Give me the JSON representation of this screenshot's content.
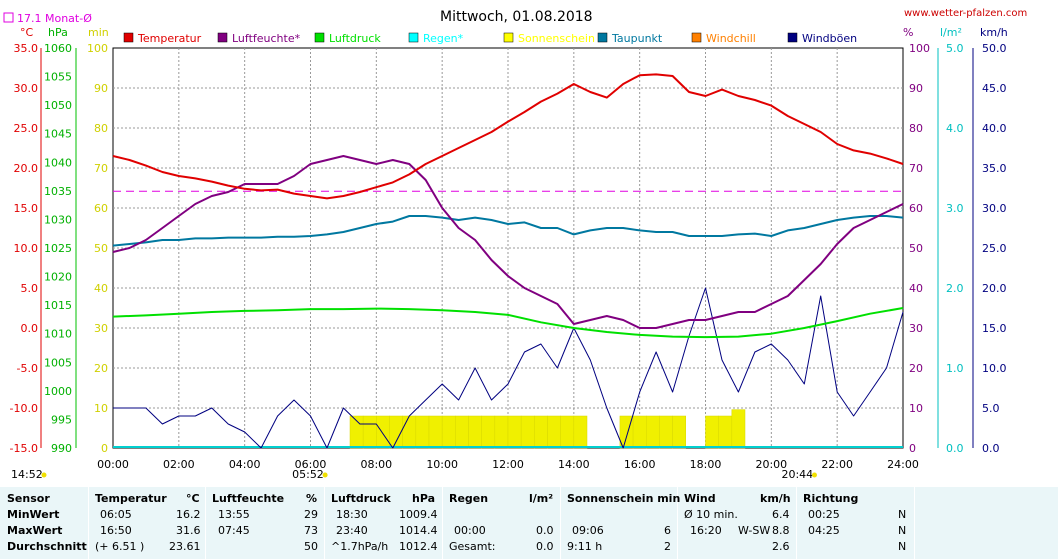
{
  "header": {
    "monthly_avg_label": "17.1 Monat-Ø",
    "title": "Mittwoch, 01.08.2018",
    "site": "www.wetter-pfalzen.com"
  },
  "colors": {
    "temperature": "#e00000",
    "humidity": "#800080",
    "pressure": "#00e000",
    "rain": "#00d0d0",
    "sunshine": "#f0f000",
    "dewpoint": "#0078a0",
    "windchill": "#ff8000",
    "gust": "#000080",
    "monthly_avg": "#e000e0"
  },
  "legend": [
    {
      "label": "Temperatur",
      "color": "#e00000"
    },
    {
      "label": "Luftfeuchte*",
      "color": "#800080"
    },
    {
      "label": "Luftdruck",
      "color": "#00e000"
    },
    {
      "label": "Regen*",
      "color": "#00ffff"
    },
    {
      "label": "Sonnenschein",
      "color": "#ffff00"
    },
    {
      "label": "Taupunkt",
      "color": "#0078a0"
    },
    {
      "label": "Windchill",
      "color": "#ff8000"
    },
    {
      "label": "Windböen",
      "color": "#000080"
    }
  ],
  "axes": {
    "units_left": [
      "°C",
      "hPa",
      "min"
    ],
    "units_right": [
      "%",
      "l/m²",
      "km/h"
    ],
    "temp_ticks": [
      "35.0",
      "30.0",
      "25.0",
      "20.0",
      "15.0",
      "10.0",
      "5.0",
      "0.0",
      "-5.0",
      "-10.0",
      "-15.0"
    ],
    "pressure_ticks": [
      "1060",
      "1055",
      "1050",
      "1045",
      "1040",
      "1035",
      "1030",
      "1025",
      "1020",
      "1015",
      "1010",
      "1005",
      "1000",
      "995",
      "990"
    ],
    "sun_ticks": [
      "100",
      "90",
      "80",
      "70",
      "60",
      "50",
      "40",
      "30",
      "20",
      "10",
      "0"
    ],
    "humidity_ticks": [
      "100",
      "90",
      "80",
      "70",
      "60",
      "50",
      "40",
      "30",
      "20",
      "10",
      "0"
    ],
    "rain_ticks": [
      "5.0",
      "4.0",
      "3.0",
      "2.0",
      "1.0",
      "0.0"
    ],
    "wind_ticks": [
      "50.0",
      "45.0",
      "40.0",
      "35.0",
      "30.0",
      "25.0",
      "20.0",
      "15.0",
      "10.0",
      "5.0",
      "0.0"
    ],
    "time_ticks": [
      "00:00",
      "02:00",
      "04:00",
      "06:00",
      "08:00",
      "10:00",
      "12:00",
      "14:00",
      "16:00",
      "18:00",
      "20:00",
      "22:00",
      "24:00"
    ],
    "sunrise": "05:52",
    "sunset": "20:44",
    "current_time": "14:52"
  },
  "chart_data": {
    "type": "line",
    "x_unit": "hour of day",
    "xlim": [
      0,
      24
    ],
    "temp_ylim": [
      -15,
      35
    ],
    "monthly_avg_temp": 17.1,
    "series": [
      {
        "name": "Temperatur",
        "axis": "temp",
        "x": [
          0,
          0.5,
          1,
          1.5,
          2,
          2.5,
          3,
          3.5,
          4,
          4.5,
          5,
          5.5,
          6,
          6.5,
          7,
          7.5,
          8,
          8.5,
          9,
          9.5,
          10,
          10.5,
          11,
          11.5,
          12,
          12.5,
          13,
          13.5,
          14,
          14.5,
          15,
          15.5,
          16,
          16.5,
          17,
          17.5,
          18,
          18.5,
          19,
          19.5,
          20,
          20.5,
          21,
          21.5,
          22,
          22.5,
          23,
          23.5,
          24
        ],
        "y": [
          21.5,
          21,
          20.3,
          19.5,
          19,
          18.7,
          18.3,
          17.8,
          17.4,
          17.2,
          17.3,
          16.8,
          16.5,
          16.2,
          16.5,
          17,
          17.6,
          18.2,
          19.2,
          20.5,
          21.5,
          22.5,
          23.5,
          24.5,
          25.8,
          27,
          28.3,
          29.3,
          30.5,
          29.5,
          28.8,
          30.5,
          31.6,
          31.7,
          31.5,
          29.5,
          29,
          29.8,
          29,
          28.5,
          27.8,
          26.5,
          25.5,
          24.5,
          23,
          22.2,
          21.8,
          21.2,
          20.5
        ]
      },
      {
        "name": "Luftfeuchte*",
        "axis": "humidity",
        "x": [
          0,
          0.5,
          1,
          1.5,
          2,
          2.5,
          3,
          3.5,
          4,
          4.5,
          5,
          5.5,
          6,
          6.5,
          7,
          7.5,
          8,
          8.5,
          9,
          9.5,
          10,
          10.5,
          11,
          11.5,
          12,
          12.5,
          13,
          13.5,
          14,
          14.5,
          15,
          15.5,
          16,
          16.5,
          17,
          17.5,
          18,
          18.5,
          19,
          19.5,
          20,
          20.5,
          21,
          21.5,
          22,
          22.5,
          23,
          23.5,
          24
        ],
        "y": [
          49,
          50,
          52,
          55,
          58,
          61,
          63,
          64,
          66,
          66,
          66,
          68,
          71,
          72,
          73,
          72,
          71,
          72,
          71,
          67,
          60,
          55,
          52,
          47,
          43,
          40,
          38,
          36,
          31,
          32,
          33,
          32,
          30,
          30,
          31,
          32,
          32,
          33,
          34,
          34,
          36,
          38,
          42,
          46,
          51,
          55,
          57,
          59,
          61
        ]
      },
      {
        "name": "Luftdruck",
        "axis": "pressure",
        "x": [
          0,
          1,
          2,
          3,
          4,
          5,
          6,
          7,
          8,
          9,
          10,
          11,
          12,
          13,
          14,
          15,
          16,
          17,
          18,
          19,
          20,
          21,
          22,
          23,
          24
        ],
        "y": [
          1013,
          1013.2,
          1013.5,
          1013.8,
          1014,
          1014.1,
          1014.3,
          1014.3,
          1014.4,
          1014.3,
          1014.1,
          1013.8,
          1013.3,
          1012,
          1011,
          1010.3,
          1009.8,
          1009.5,
          1009.4,
          1009.5,
          1010,
          1011,
          1012.2,
          1013.5,
          1014.5
        ]
      },
      {
        "name": "Taupunkt",
        "axis": "temp",
        "x": [
          0,
          0.5,
          1,
          1.5,
          2,
          2.5,
          3,
          3.5,
          4,
          4.5,
          5,
          5.5,
          6,
          6.5,
          7,
          7.5,
          8,
          8.5,
          9,
          9.5,
          10,
          10.5,
          11,
          11.5,
          12,
          12.5,
          13,
          13.5,
          14,
          14.5,
          15,
          15.5,
          16,
          16.5,
          17,
          17.5,
          18,
          18.5,
          19,
          19.5,
          20,
          20.5,
          21,
          21.5,
          22,
          22.5,
          23,
          23.5,
          24
        ],
        "y": [
          10.3,
          10.5,
          10.7,
          11,
          11,
          11.2,
          11.2,
          11.3,
          11.3,
          11.3,
          11.4,
          11.4,
          11.5,
          11.7,
          12,
          12.5,
          13,
          13.3,
          14,
          14,
          13.8,
          13.5,
          13.8,
          13.5,
          13,
          13.2,
          12.5,
          12.5,
          11.7,
          12.2,
          12.5,
          12.5,
          12.2,
          12,
          12,
          11.5,
          11.5,
          11.5,
          11.7,
          11.8,
          11.5,
          12.2,
          12.5,
          13,
          13.5,
          13.8,
          14,
          14,
          13.8
        ]
      },
      {
        "name": "Windböen",
        "axis": "wind",
        "x": [
          0,
          0.5,
          1,
          1.5,
          2,
          2.5,
          3,
          3.5,
          4,
          4.5,
          5,
          5.5,
          6,
          6.5,
          7,
          7.5,
          8,
          8.5,
          9,
          9.5,
          10,
          10.5,
          11,
          11.5,
          12,
          12.5,
          13,
          13.5,
          14,
          14.5,
          15,
          15.5,
          16,
          16.5,
          17,
          17.5,
          18,
          18.5,
          19,
          19.5,
          20,
          20.5,
          21,
          21.5,
          22,
          22.5,
          23,
          23.5,
          24
        ],
        "y": [
          5,
          5,
          5,
          3,
          4,
          4,
          5,
          3,
          2,
          0,
          4,
          6,
          4,
          0,
          5,
          3,
          3,
          0,
          4,
          6,
          8,
          6,
          10,
          6,
          8,
          12,
          13,
          10,
          15,
          11,
          5,
          0,
          7,
          12,
          7,
          14,
          20,
          11,
          7,
          12,
          13,
          11,
          8,
          19,
          7,
          4,
          7,
          10,
          17
        ]
      }
    ],
    "sunshine_minutes": {
      "x": [
        7.2,
        7.6,
        8,
        8.4,
        8.8,
        9.2,
        9.6,
        10,
        10.4,
        10.8,
        11.2,
        11.6,
        12,
        12.4,
        12.8,
        13.2,
        13.6,
        14,
        15.4,
        15.8,
        16.2,
        16.6,
        17,
        18,
        18.4,
        18.8
      ],
      "y": [
        5,
        5,
        5,
        5,
        5,
        5,
        5,
        5,
        5,
        5,
        5,
        5,
        5,
        5,
        5,
        5,
        5,
        5,
        5,
        5,
        5,
        5,
        5,
        5,
        5,
        6
      ]
    },
    "rain_mm": 0.0
  },
  "table": {
    "col_sensor": "Sensor",
    "rows": [
      "MinWert",
      "MaxWert",
      "Durchschnitt"
    ],
    "temp": {
      "title": "Temperatur",
      "unit": "°C",
      "min_time": "06:05",
      "min_val": "16.2",
      "max_time": "16:50",
      "max_val": "31.6",
      "avg_note": "(+ 6.51 )",
      "avg_val": "23.61"
    },
    "hum": {
      "title": "Luftfeuchte",
      "unit": "%",
      "min_time": "13:55",
      "min_val": "29",
      "max_time": "07:45",
      "max_val": "73",
      "avg_val": "50"
    },
    "press": {
      "title": "Luftdruck",
      "unit": "hPa",
      "min_time": "18:30",
      "min_val": "1009.4",
      "max_time": "23:40",
      "max_val": "1014.4",
      "avg_note": "^1.7hPa/h",
      "avg_val": "1012.4"
    },
    "rain": {
      "title": "Regen",
      "unit": "l/m²",
      "max_time": "00:00",
      "max_val": "0.0",
      "avg_note": "Gesamt:",
      "avg_val": "0.0"
    },
    "sun": {
      "title": "Sonnenschein min",
      "max_time": "09:06",
      "max_val": "6",
      "avg_note": "9:11 h",
      "avg_val": "2"
    },
    "wind": {
      "title": "Wind",
      "unit": "km/h",
      "min_time": "Ø 10 min.",
      "min_val": "6.4",
      "max_time": "16:20",
      "max_dir": "W-SW",
      "max_val": "8.8",
      "avg_val": "2.6"
    },
    "dir": {
      "title": "Richtung",
      "min_time": "00:25",
      "min_val": "N",
      "max_time": "04:25",
      "max_val": "N",
      "avg_val": "N"
    }
  }
}
